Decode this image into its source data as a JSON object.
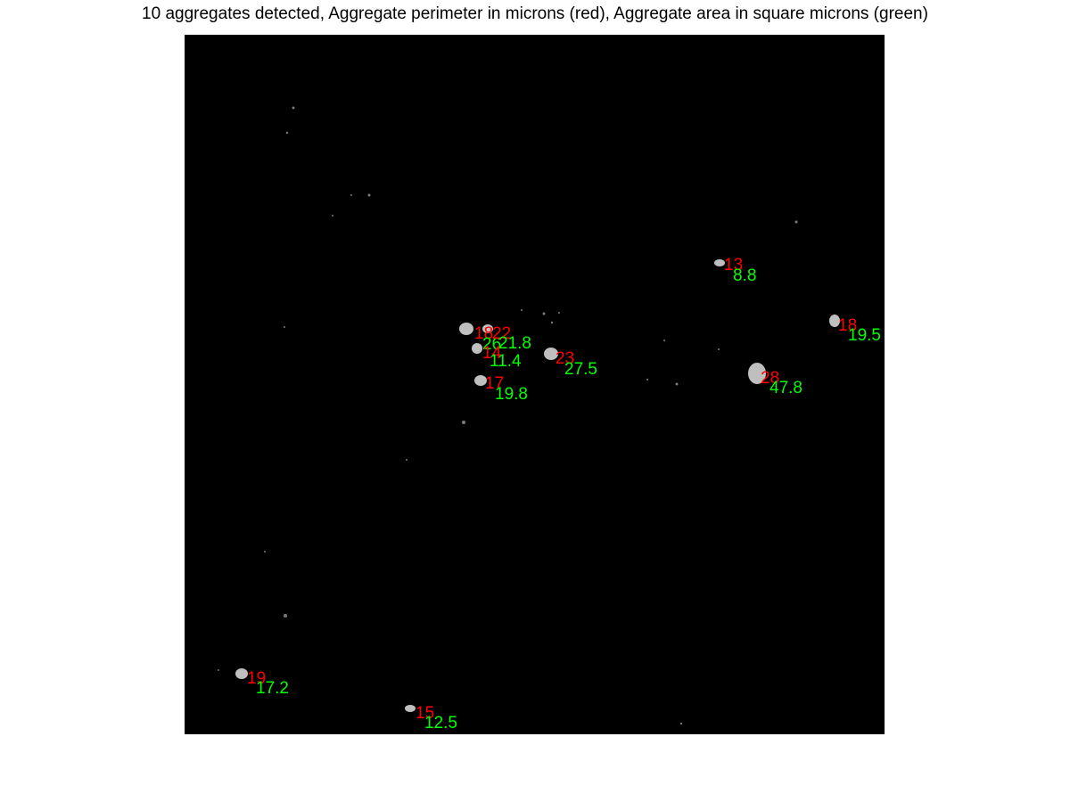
{
  "title": "10 aggregates detected, Aggregate perimeter in microns (red), Aggregate area in square microns (green)",
  "colors": {
    "background": "#000000",
    "perimeter": "#ff0000",
    "area": "#00ff00",
    "particle": "#bfbfbf"
  },
  "aggregates": [
    {
      "perimeter": "13",
      "area": "8.8"
    },
    {
      "perimeter": "18",
      "area": "19.5"
    },
    {
      "perimeter": "18",
      "area": "26"
    },
    {
      "perimeter": "22",
      "area": "21.8"
    },
    {
      "perimeter": "14",
      "area": "11.4"
    },
    {
      "perimeter": "23",
      "area": "27.5"
    },
    {
      "perimeter": "17",
      "area": "19.8"
    },
    {
      "perimeter": "28",
      "area": "47.8"
    },
    {
      "perimeter": "19",
      "area": "17.2"
    },
    {
      "perimeter": "15",
      "area": "12.5"
    }
  ]
}
